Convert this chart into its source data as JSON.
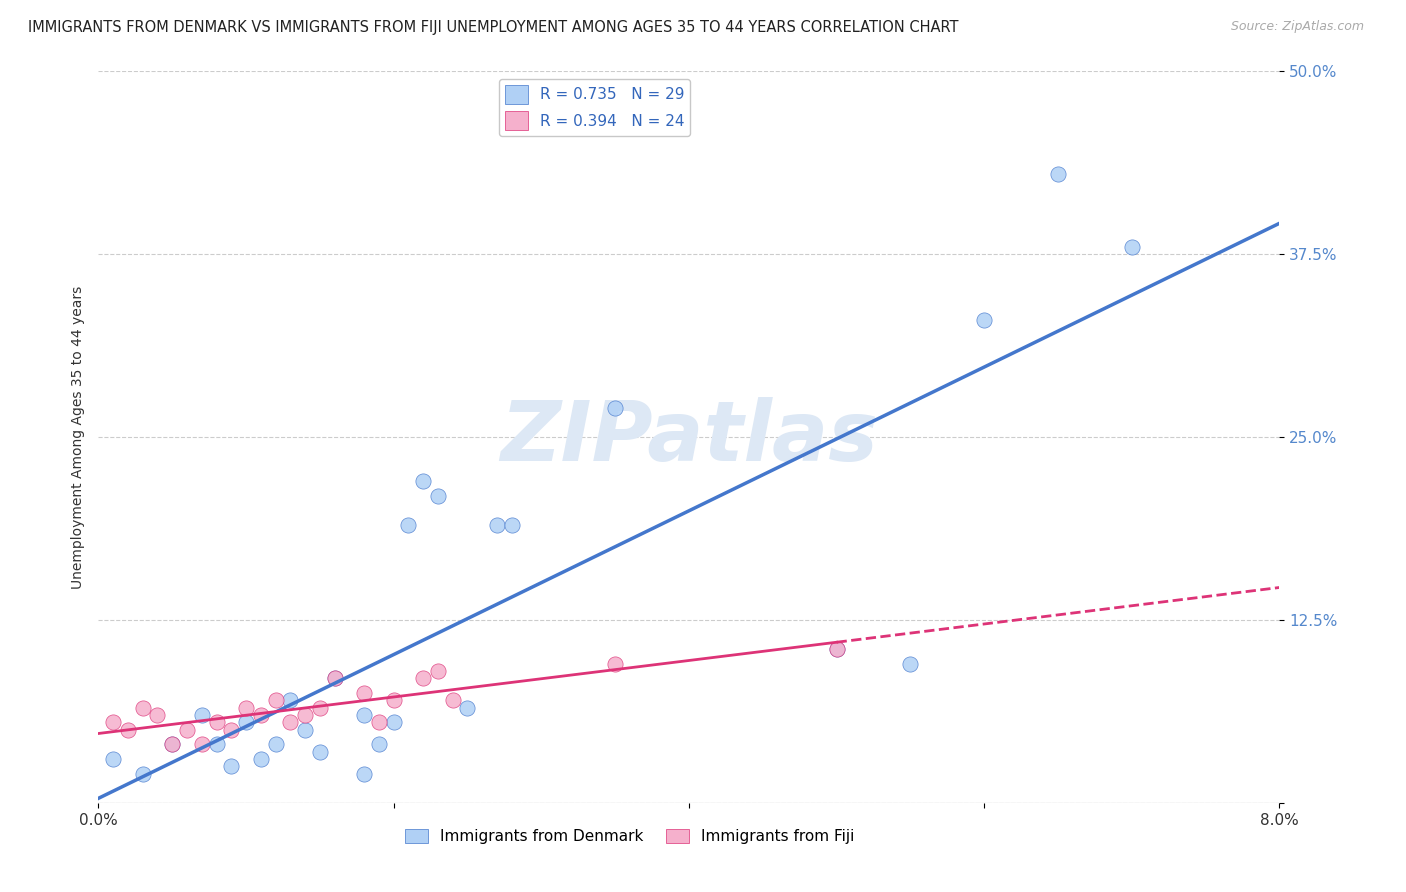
{
  "title": "IMMIGRANTS FROM DENMARK VS IMMIGRANTS FROM FIJI UNEMPLOYMENT AMONG AGES 35 TO 44 YEARS CORRELATION CHART",
  "source": "Source: ZipAtlas.com",
  "ylabel": "Unemployment Among Ages 35 to 44 years",
  "denmark_R": 0.735,
  "denmark_N": 29,
  "fiji_R": 0.394,
  "fiji_N": 24,
  "denmark_color": "#b0d0f5",
  "denmark_line_color": "#4477cc",
  "fiji_color": "#f5b0cc",
  "fiji_line_color": "#dd3377",
  "watermark_text": "ZIPatlas",
  "watermark_color": "#dde8f5",
  "xlim": [
    0.0,
    0.08
  ],
  "ylim": [
    0.0,
    0.5
  ],
  "xticks": [
    0.0,
    0.02,
    0.04,
    0.06,
    0.08
  ],
  "xticklabels_shown": [
    "0.0%",
    "",
    "",
    "",
    "8.0%"
  ],
  "yticks": [
    0.0,
    0.125,
    0.25,
    0.375,
    0.5
  ],
  "yticklabels": [
    "",
    "12.5%",
    "25.0%",
    "37.5%",
    "50.0%"
  ],
  "denmark_x": [
    0.001,
    0.003,
    0.005,
    0.007,
    0.008,
    0.009,
    0.01,
    0.011,
    0.012,
    0.013,
    0.014,
    0.015,
    0.016,
    0.018,
    0.019,
    0.02,
    0.021,
    0.022,
    0.023,
    0.025,
    0.027,
    0.028,
    0.035,
    0.05,
    0.055,
    0.06,
    0.065,
    0.07,
    0.018
  ],
  "denmark_y": [
    0.03,
    0.02,
    0.04,
    0.06,
    0.04,
    0.025,
    0.055,
    0.03,
    0.04,
    0.07,
    0.05,
    0.035,
    0.085,
    0.06,
    0.04,
    0.055,
    0.19,
    0.22,
    0.21,
    0.065,
    0.19,
    0.19,
    0.27,
    0.105,
    0.095,
    0.33,
    0.43,
    0.38,
    0.02
  ],
  "fiji_x": [
    0.001,
    0.002,
    0.003,
    0.004,
    0.005,
    0.006,
    0.007,
    0.008,
    0.009,
    0.01,
    0.011,
    0.012,
    0.013,
    0.014,
    0.015,
    0.016,
    0.018,
    0.019,
    0.02,
    0.022,
    0.023,
    0.024,
    0.035,
    0.05
  ],
  "fiji_y": [
    0.055,
    0.05,
    0.065,
    0.06,
    0.04,
    0.05,
    0.04,
    0.055,
    0.05,
    0.065,
    0.06,
    0.07,
    0.055,
    0.06,
    0.065,
    0.085,
    0.075,
    0.055,
    0.07,
    0.085,
    0.09,
    0.07,
    0.095,
    0.105
  ],
  "grid_color": "#cccccc",
  "tick_color": "#5588cc",
  "title_fontsize": 10.5,
  "label_fontsize": 10,
  "legend_fontsize": 11,
  "bottom_legend_labels": [
    "Immigrants from Denmark",
    "Immigrants from Fiji"
  ]
}
